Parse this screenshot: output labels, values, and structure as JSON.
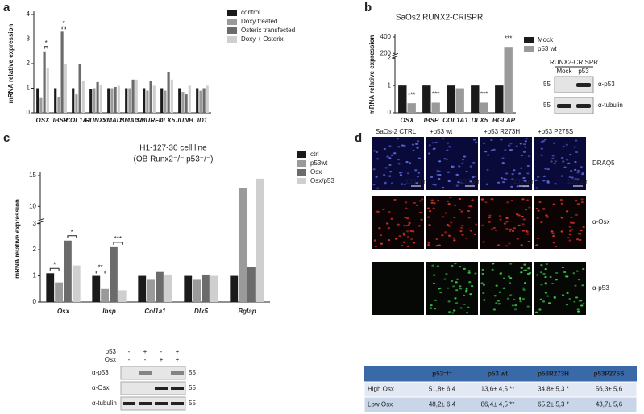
{
  "panel_labels": [
    "a",
    "b",
    "c",
    "d"
  ],
  "chart_data": [
    {
      "type": "bar",
      "y_label": "mRNA relative expression",
      "categories": [
        "OSX",
        "IBSP",
        "COL1A1",
        "RUNX2",
        "SMAD1",
        "SMAD7",
        "SMURF1",
        "DLX5",
        "JUNB",
        "ID1"
      ],
      "series": [
        {
          "name": "control",
          "color": "#1a1a1a",
          "values": [
            1.0,
            1.0,
            1.0,
            0.97,
            1.0,
            1.0,
            1.0,
            1.0,
            1.0,
            1.0
          ]
        },
        {
          "name": "Doxy treated",
          "color": "#9a9a9a",
          "values": [
            0.6,
            0.65,
            0.75,
            1.0,
            1.0,
            1.0,
            0.9,
            0.9,
            0.85,
            0.9
          ]
        },
        {
          "name": "Osterix transfected",
          "color": "#6b6b6b",
          "values": [
            2.5,
            3.3,
            2.0,
            1.25,
            1.05,
            1.35,
            1.3,
            1.65,
            0.75,
            1.0
          ]
        },
        {
          "name": "Doxy + Osterix",
          "color": "#cfcfcf",
          "values": [
            1.8,
            2.0,
            1.3,
            1.15,
            1.1,
            1.35,
            1.1,
            1.35,
            1.1,
            1.1
          ]
        }
      ],
      "ylim": [
        0,
        4
      ],
      "yticks": [
        0,
        1,
        2,
        3,
        4
      ],
      "annotations": [
        {
          "text": "*",
          "x": "OSX",
          "between": [
            "Osterix transfected",
            "Doxy + Osterix"
          ]
        },
        {
          "text": "*",
          "x": "IBSP",
          "between": [
            "Osterix transfected",
            "Doxy + Osterix"
          ]
        }
      ]
    },
    {
      "type": "bar",
      "title": "SaOs2 RUNX2-CRISPR",
      "y_label": "mRNA relative expression",
      "categories": [
        "OSX",
        "IBSP",
        "COL1A1",
        "DLX5",
        "BGLAP"
      ],
      "series": [
        {
          "name": "Mock",
          "color": "#1a1a1a",
          "values": [
            1.0,
            1.0,
            1.0,
            1.0,
            1.0
          ]
        },
        {
          "name": "p53 wt",
          "color": "#9a9a9a",
          "values": [
            0.35,
            0.37,
            0.9,
            0.37,
            280
          ]
        }
      ],
      "ylim": [
        0,
        400
      ],
      "ybreak": [
        2,
        200
      ],
      "yticks": [
        0,
        1,
        2,
        200,
        400
      ],
      "annotations": [
        {
          "text": "***",
          "x": "OSX",
          "between": [
            "p53 wt"
          ]
        },
        {
          "text": "***",
          "x": "IBSP",
          "between": [
            "p53 wt"
          ]
        },
        {
          "text": "***",
          "x": "DLX5",
          "between": [
            "p53 wt"
          ]
        },
        {
          "text": "***",
          "x": "BGLAP",
          "between": [
            "p53 wt"
          ]
        }
      ]
    },
    {
      "type": "bar",
      "title": "H1-127-30 cell line",
      "subtitle": "(OB Runx2⁻/⁻ p53⁻/⁻)",
      "y_label": "mRNA relative expression",
      "categories": [
        "Osx",
        "Ibsp",
        "Col1a1",
        "Dlx5",
        "Bglap"
      ],
      "series": [
        {
          "name": "ctrl",
          "color": "#1a1a1a",
          "values": [
            1.1,
            1.0,
            1.0,
            1.0,
            1.0
          ]
        },
        {
          "name": "p53wt",
          "color": "#9a9a9a",
          "values": [
            0.75,
            0.5,
            0.85,
            0.85,
            13
          ]
        },
        {
          "name": "Osx",
          "color": "#6b6b6b",
          "values": [
            2.35,
            2.1,
            1.15,
            1.05,
            1.35
          ]
        },
        {
          "name": "Osx/p53",
          "color": "#cfcfcf",
          "values": [
            1.4,
            0.45,
            1.05,
            1.0,
            14.5
          ]
        }
      ],
      "ylim": [
        0,
        15
      ],
      "ybreak": [
        3,
        8
      ],
      "yticks": [
        0,
        1,
        2,
        3,
        10,
        15
      ],
      "annotations": [
        {
          "text": "*",
          "x": "Osx",
          "between": [
            "ctrl",
            "p53wt"
          ]
        },
        {
          "text": "*",
          "x": "Osx",
          "between": [
            "Osx",
            "Osx/p53"
          ]
        },
        {
          "text": "**",
          "x": "Ibsp",
          "between": [
            "ctrl",
            "p53wt"
          ]
        },
        {
          "text": "***",
          "x": "Ibsp",
          "between": [
            "Osx",
            "Osx/p53"
          ]
        }
      ]
    }
  ],
  "blot_b": {
    "header": "RUNX2-CRISPR",
    "lanes": [
      "Mock",
      "p53"
    ],
    "rows": [
      {
        "label": "α-p53",
        "size": "55"
      },
      {
        "label": "α-tubulin",
        "size": "55"
      }
    ]
  },
  "blot_c": {
    "conditions": [
      {
        "name": "p53",
        "signs": [
          "-",
          "+",
          "-",
          "+"
        ]
      },
      {
        "name": "Osx",
        "signs": [
          "-",
          "-",
          "+",
          "+"
        ]
      }
    ],
    "rows": [
      {
        "label": "α-p53",
        "size": "55"
      },
      {
        "label": "α-Osx",
        "size": "55"
      },
      {
        "label": "α-tubulin",
        "size": "55"
      }
    ]
  },
  "panel_d": {
    "columns": [
      "SaOs-2 CTRL",
      "+p53 wt",
      "+p53 R273H",
      "+p53 P275S"
    ],
    "rows": [
      "DRAQ5",
      "α-Osx",
      "α-p53"
    ],
    "scale_bar": "100 µm",
    "table": {
      "header": [
        "p53⁻/⁻",
        "p53 wt",
        "p53R273H",
        "p53P275S"
      ],
      "rows": [
        [
          "High Osx",
          "51,8± 6,4",
          "13,6± 4,5 **",
          "34,8± 5,3 *",
          "56,3± 5,6"
        ],
        [
          "Low Osx",
          "48,2± 6,4",
          "86,4± 4,5 **",
          "65,2± 5,3 *",
          "43,7± 5,6"
        ]
      ]
    }
  }
}
